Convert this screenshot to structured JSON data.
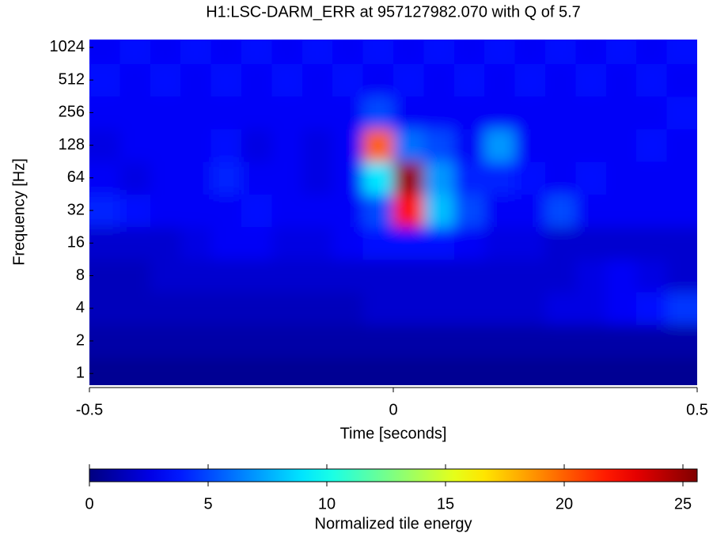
{
  "chart_data": {
    "type": "heatmap",
    "title": "H1:LSC-DARM_ERR at 957127982.070 with Q of 5.7",
    "x_label": "Time [seconds]",
    "y_label": "Frequency [Hz]",
    "colorbar_label": "Normalized tile energy",
    "colormap": "jet",
    "y_log_base": 2,
    "xlim": [
      -0.5,
      0.5
    ],
    "xticks": [
      -0.5,
      0,
      0.5
    ],
    "ylim": [
      0.78,
      1210
    ],
    "yticks": [
      1,
      2,
      4,
      8,
      16,
      32,
      64,
      128,
      256,
      512,
      1024
    ],
    "clim": [
      0,
      25.6
    ],
    "cticks": [
      0,
      5,
      10,
      15,
      20,
      25
    ],
    "x": [
      -0.475,
      -0.425,
      -0.375,
      -0.325,
      -0.275,
      -0.225,
      -0.175,
      -0.125,
      -0.075,
      -0.025,
      0.025,
      0.075,
      0.125,
      0.175,
      0.225,
      0.275,
      0.325,
      0.375,
      0.425,
      0.475
    ],
    "y": [
      1,
      2,
      4,
      8,
      16,
      32,
      64,
      128,
      256,
      512,
      1024
    ],
    "z": [
      [
        0.5,
        0.5,
        0.5,
        0.5,
        0.5,
        0.5,
        0.5,
        0.5,
        0.5,
        0.5,
        0.5,
        0.5,
        0.5,
        0.5,
        0.5,
        0.5,
        0.5,
        0.5,
        0.5,
        0.5
      ],
      [
        1,
        1,
        1,
        1,
        1,
        1,
        1,
        1,
        1,
        1,
        1,
        1,
        1,
        1,
        1,
        1,
        1,
        1,
        1,
        1
      ],
      [
        1.5,
        1.5,
        1.5,
        1.5,
        1.5,
        1.5,
        1.5,
        1.5,
        1.5,
        2,
        2,
        2,
        2,
        2,
        2,
        2.5,
        2.5,
        3,
        3.5,
        4.5
      ],
      [
        1.5,
        1.5,
        2,
        2,
        2,
        2,
        2,
        2,
        2,
        2,
        2,
        2,
        2,
        2,
        2,
        2,
        2.5,
        3,
        2.5,
        2
      ],
      [
        2,
        2,
        2,
        2.5,
        3,
        3,
        2.5,
        2.5,
        3,
        3.5,
        3.5,
        3.5,
        3,
        2.5,
        2.5,
        2,
        2,
        2,
        2,
        2
      ],
      [
        4,
        3.5,
        3,
        3,
        3,
        3.5,
        3,
        3,
        3,
        5,
        22,
        8,
        5,
        3,
        3,
        5,
        3,
        3,
        3,
        3
      ],
      [
        3,
        2.5,
        3,
        3,
        4,
        3,
        3,
        2.5,
        3,
        9,
        25,
        7,
        4,
        4,
        3.5,
        3,
        3.5,
        3,
        3,
        3
      ],
      [
        2.5,
        3,
        3,
        3,
        3.5,
        2.5,
        3,
        2.5,
        3,
        20,
        6,
        5,
        3,
        7,
        3,
        3,
        3,
        3,
        3.5,
        3
      ],
      [
        3,
        3,
        3,
        3,
        3,
        3,
        3,
        3,
        3,
        5,
        3,
        3,
        3,
        3,
        3,
        3,
        3,
        3,
        3,
        3.5
      ],
      [
        3.5,
        3,
        3.5,
        3,
        3.5,
        3,
        3.5,
        3,
        3.5,
        3,
        3.5,
        3,
        3.5,
        3,
        3.5,
        3,
        3.5,
        3,
        3.5,
        3
      ],
      [
        3,
        3.5,
        3,
        3.5,
        3,
        3.5,
        3,
        3.5,
        3,
        3.5,
        3,
        3.5,
        3,
        3.5,
        3,
        3.5,
        3,
        3.5,
        3,
        3.5
      ]
    ]
  }
}
